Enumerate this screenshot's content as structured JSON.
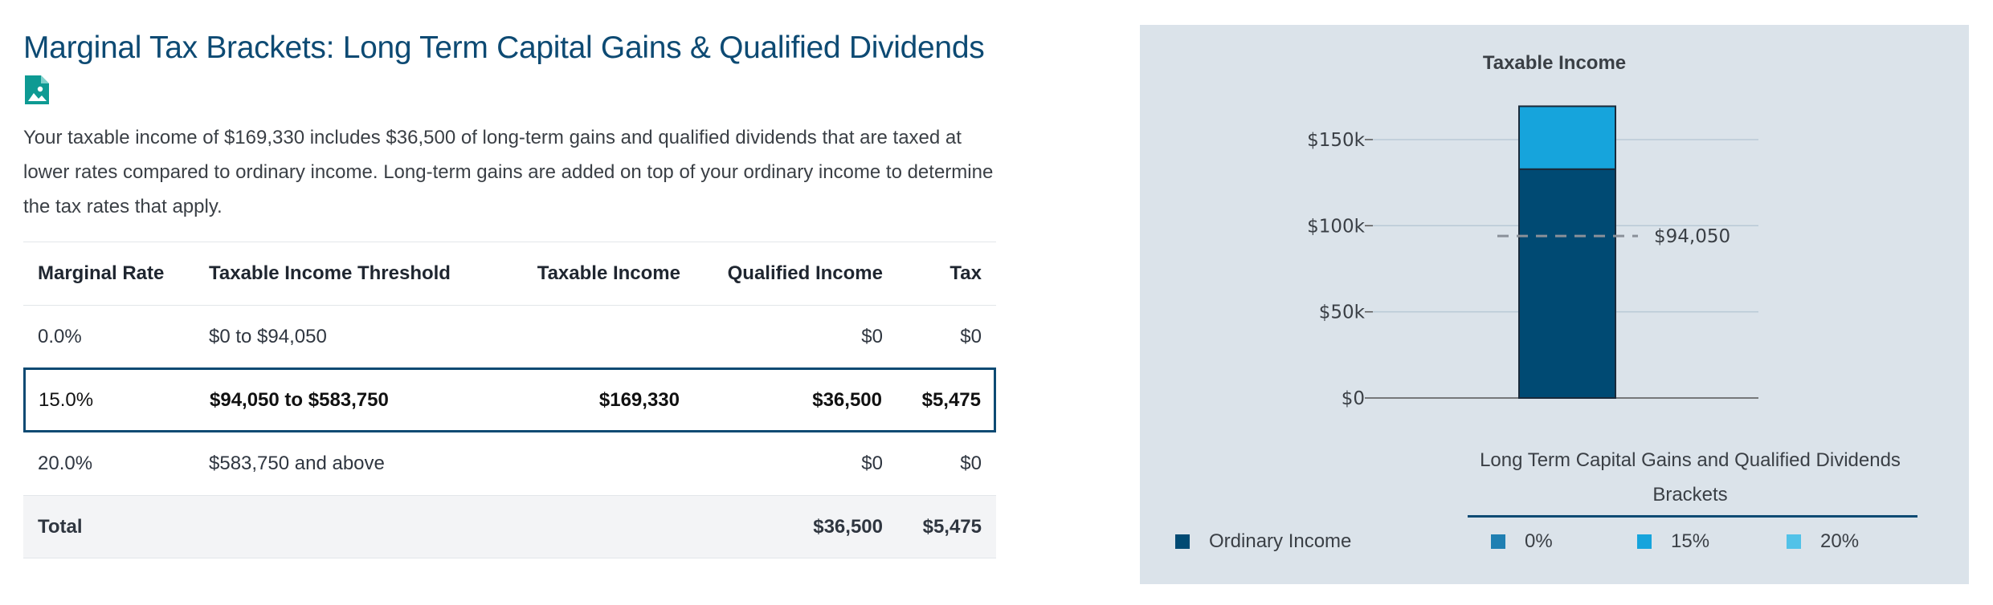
{
  "header": {
    "title": "Marginal Tax Brackets: Long Term Capital Gains & Qualified Dividends",
    "icon": "image-document-icon",
    "description": "Your taxable income of $169,330 includes $36,500 of long-term gains and qualified dividends that are taxed at lower rates compared to ordinary income. Long-term gains are added on top of your ordinary income to determine the tax rates that apply."
  },
  "table": {
    "columns": [
      "Marginal Rate",
      "Taxable Income Threshold",
      "Taxable Income",
      "Qualified Income",
      "Tax"
    ],
    "rows": [
      {
        "rate": "0.0%",
        "threshold": "$0 to $94,050",
        "taxable_income": "",
        "qualified_income": "$0",
        "tax": "$0",
        "highlighted": false
      },
      {
        "rate": "15.0%",
        "threshold": "$94,050 to $583,750",
        "taxable_income": "$169,330",
        "qualified_income": "$36,500",
        "tax": "$5,475",
        "highlighted": true
      },
      {
        "rate": "20.0%",
        "threshold": "$583,750 and above",
        "taxable_income": "",
        "qualified_income": "$0",
        "tax": "$0",
        "highlighted": false
      }
    ],
    "total": {
      "label": "Total",
      "qualified_income": "$36,500",
      "tax": "$5,475"
    },
    "highlight_color": "#0d4a73"
  },
  "chart_data": {
    "type": "bar",
    "title": "Taxable Income",
    "categories": [
      ""
    ],
    "series": [
      {
        "name": "Ordinary Income",
        "values": [
          132830
        ],
        "color": "#004a73"
      },
      {
        "name": "15%",
        "values": [
          36500
        ],
        "color": "#16a4dc"
      }
    ],
    "stacked": true,
    "ylim": [
      0,
      170000
    ],
    "yticks": [
      {
        "value": 0,
        "label": "$0"
      },
      {
        "value": 50000,
        "label": "$50k"
      },
      {
        "value": 100000,
        "label": "$100k"
      },
      {
        "value": 150000,
        "label": "$150k"
      }
    ],
    "reference_line": {
      "value": 94050,
      "label": "$94,050",
      "style": "dashed"
    },
    "grid": true,
    "legend": {
      "placement": "bottom",
      "group_title": "Long Term Capital Gains and Qualified Dividends Brackets",
      "items": [
        {
          "label": "Ordinary Income",
          "color": "#004a73"
        },
        {
          "label": "0%",
          "color": "#1f7fb2"
        },
        {
          "label": "15%",
          "color": "#16a4dc"
        },
        {
          "label": "20%",
          "color": "#52c2e8"
        }
      ]
    }
  }
}
